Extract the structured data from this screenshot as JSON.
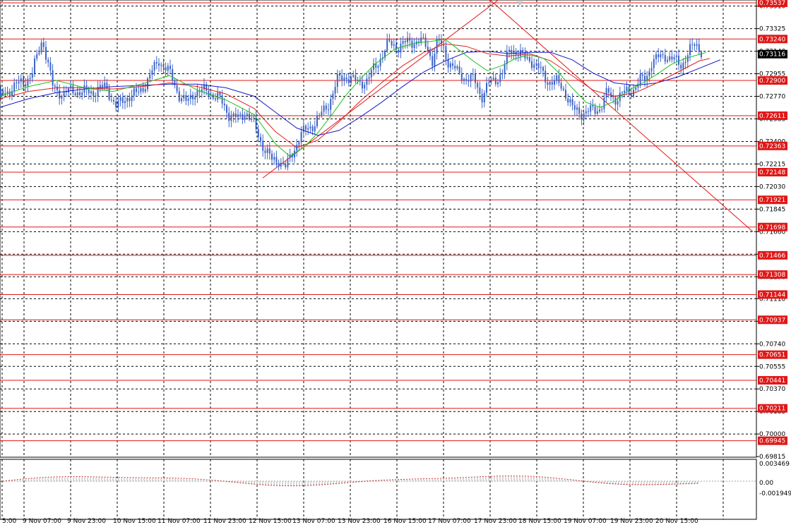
{
  "colors": {
    "background": "#ffffff",
    "grid": "#000000",
    "candles": "#3b63c8",
    "ma_fast": "#1fbf1f",
    "ma_mid": "#e02020",
    "ma_slow": "#1818c8",
    "levels": "#e01818",
    "trendlines": "#e01818",
    "osc": "#c83030",
    "current_box": "#000000"
  },
  "chart_data": {
    "type": "line",
    "subtype": "candlestick",
    "x_labels": [
      "5:00",
      "9 Nov 07:00",
      "9 Nov 23:00",
      "10 Nov 15:00",
      "11 Nov 07:00",
      "11 Nov 23:00",
      "12 Nov 15:00",
      "13 Nov 07:00",
      "13 Nov 23:00",
      "16 Nov 15:00",
      "17 Nov 07:00",
      "17 Nov 23:00",
      "18 Nov 15:00",
      "19 Nov 07:00",
      "19 Nov 23:00",
      "20 Nov 15:00"
    ],
    "y_ticks": [
      "0.73510",
      "0.73325",
      "0.73140",
      "0.72955",
      "0.72770",
      "0.72585",
      "0.72400",
      "0.72215",
      "0.72030",
      "0.71845",
      "0.71660",
      "0.71475",
      "0.71290",
      "0.71110",
      "0.70925",
      "0.70740",
      "0.70555",
      "0.70370",
      "0.70185",
      "0.70000",
      "0.69815"
    ],
    "ylim": [
      0.6981,
      0.7356
    ],
    "levels": [
      "0.73537",
      "0.73240",
      "0.72900",
      "0.72611",
      "0.72363",
      "0.72148",
      "0.71921",
      "0.71698",
      "0.71466",
      "0.71308",
      "0.71144",
      "0.70937",
      "0.70651",
      "0.70441",
      "0.70211",
      "0.69945"
    ],
    "current_price": "0.73116",
    "close_path": {
      "x": [
        0,
        14,
        30,
        45,
        60,
        75,
        90,
        105,
        118,
        132,
        150,
        165,
        180,
        195,
        210,
        225,
        240,
        255,
        265,
        275,
        295,
        310,
        325,
        338,
        348,
        360,
        372,
        385,
        395,
        405,
        415,
        425,
        435,
        445,
        455,
        465,
        478,
        490,
        505,
        520,
        535,
        550,
        565,
        580,
        595,
        605,
        612,
        620,
        628,
        635,
        648,
        660,
        672,
        682,
        692,
        700,
        712,
        722,
        732,
        742,
        752,
        762,
        775,
        790,
        800,
        812,
        825,
        840,
        850,
        860,
        870,
        882,
        895,
        905,
        915,
        922,
        932,
        942,
        955,
        965,
        975,
        985,
        995
      ],
      "y": [
        0.7276,
        0.7283,
        0.7288,
        0.7294,
        0.7325,
        0.7284,
        0.7279,
        0.7282,
        0.728,
        0.7281,
        0.7285,
        0.7268,
        0.7277,
        0.7279,
        0.7291,
        0.7307,
        0.7296,
        0.7277,
        0.7271,
        0.7281,
        0.7281,
        0.7275,
        0.7262,
        0.7258,
        0.7265,
        0.7253,
        0.7237,
        0.7224,
        0.7225,
        0.7218,
        0.7232,
        0.7245,
        0.725,
        0.7255,
        0.7262,
        0.7271,
        0.729,
        0.7294,
        0.7288,
        0.729,
        0.7305,
        0.732,
        0.7318,
        0.7322,
        0.7322,
        0.7318,
        0.7306,
        0.7322,
        0.7317,
        0.7305,
        0.7296,
        0.7292,
        0.729,
        0.7277,
        0.7287,
        0.729,
        0.7297,
        0.7316,
        0.7314,
        0.7308,
        0.7307,
        0.73,
        0.729,
        0.7288,
        0.7281,
        0.7265,
        0.7264,
        0.7265,
        0.7268,
        0.728,
        0.7275,
        0.7279,
        0.7282,
        0.7289,
        0.7292,
        0.7305,
        0.7308,
        0.7311,
        0.7306,
        0.7303,
        0.7313,
        0.732,
        0.7313
      ]
    },
    "ma_fast": {
      "x": [
        0,
        40,
        80,
        120,
        160,
        200,
        240,
        280,
        320,
        360,
        390,
        410,
        430,
        450,
        470,
        490,
        510,
        530,
        560,
        590,
        610,
        630,
        650,
        670,
        690,
        710,
        730,
        750,
        770,
        790,
        810,
        830,
        850,
        870,
        890,
        910,
        930,
        950,
        970,
        1000
      ],
      "y": [
        0.7277,
        0.7285,
        0.729,
        0.7284,
        0.7281,
        0.7287,
        0.7294,
        0.7282,
        0.7274,
        0.7262,
        0.7238,
        0.7228,
        0.7235,
        0.7247,
        0.7262,
        0.7278,
        0.7291,
        0.7303,
        0.7316,
        0.7321,
        0.7322,
        0.7324,
        0.7315,
        0.7306,
        0.7298,
        0.7302,
        0.7308,
        0.7311,
        0.7308,
        0.7297,
        0.7284,
        0.7272,
        0.7268,
        0.7273,
        0.7282,
        0.7288,
        0.7295,
        0.7303,
        0.7308,
        0.7313
      ]
    },
    "ma_mid": {
      "x": [
        0,
        40,
        80,
        120,
        160,
        200,
        240,
        280,
        320,
        360,
        390,
        420,
        450,
        480,
        510,
        540,
        570,
        600,
        630,
        660,
        690,
        720,
        750,
        780,
        810,
        840,
        870,
        900,
        930,
        960,
        990,
        1005
      ],
      "y": [
        0.7275,
        0.7281,
        0.7284,
        0.7284,
        0.7283,
        0.7285,
        0.7288,
        0.7285,
        0.7279,
        0.7267,
        0.7248,
        0.7235,
        0.7241,
        0.7256,
        0.7273,
        0.7288,
        0.7302,
        0.7313,
        0.732,
        0.7318,
        0.7312,
        0.731,
        0.7312,
        0.7306,
        0.7294,
        0.7282,
        0.7277,
        0.728,
        0.7288,
        0.7297,
        0.7306,
        0.7308
      ]
    },
    "ma_slow": {
      "x": [
        0,
        40,
        80,
        120,
        160,
        200,
        240,
        280,
        320,
        360,
        390,
        420,
        450,
        480,
        510,
        540,
        570,
        600,
        630,
        660,
        690,
        720,
        750,
        780,
        810,
        840,
        870,
        900,
        930,
        960,
        990,
        1020
      ],
      "y": [
        0.7268,
        0.7275,
        0.728,
        0.7283,
        0.7285,
        0.7286,
        0.7287,
        0.7287,
        0.7284,
        0.7277,
        0.7264,
        0.7251,
        0.7245,
        0.7249,
        0.726,
        0.7272,
        0.7285,
        0.7297,
        0.7306,
        0.7313,
        0.7314,
        0.7312,
        0.7313,
        0.7313,
        0.7307,
        0.7296,
        0.7288,
        0.7286,
        0.7288,
        0.7293,
        0.73,
        0.7307
      ]
    },
    "trend_lines": [
      {
        "from": [
          372,
          0.721
        ],
        "to": [
          710,
          0.7358
        ]
      },
      {
        "from": [
          690,
          0.7358
        ],
        "to": [
          1066,
          0.7166
        ]
      }
    ],
    "oscillator": {
      "y_labels": [
        "0.003469",
        "0.00",
        "-0.001949"
      ]
    }
  }
}
